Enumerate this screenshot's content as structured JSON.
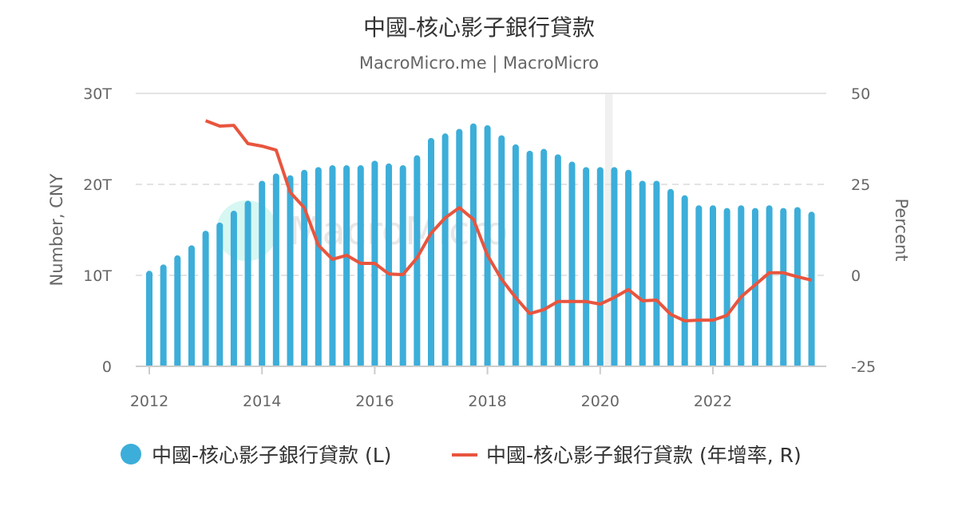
{
  "chart_data": {
    "type": "bar+line",
    "title": "中國-核心影子銀行貸款",
    "subtitle": "MacroMicro.me | MacroMicro",
    "watermark": "MacroMicro",
    "y_left": {
      "label": "Number, CNY",
      "ticks": [
        "0",
        "10T",
        "20T",
        "30T"
      ],
      "tick_values": [
        0,
        10,
        20,
        30
      ],
      "range": [
        0,
        30
      ],
      "unit": "T CNY"
    },
    "y_right": {
      "label": "Percent",
      "ticks": [
        "-25",
        "0",
        "25",
        "50"
      ],
      "tick_values": [
        -25,
        0,
        25,
        50
      ],
      "range": [
        -25,
        50
      ]
    },
    "x": {
      "ticks": [
        "2012",
        "2014",
        "2016",
        "2018",
        "2020",
        "2022"
      ],
      "tick_values": [
        2012,
        2014,
        2016,
        2018,
        2020,
        2022
      ],
      "range": [
        2011.8,
        2024.2
      ]
    },
    "grid": true,
    "legend_placement": "bottom",
    "shaded_period": [
      "2020-01",
      "2020-04"
    ],
    "categories": [
      "2012Q1",
      "2012Q2",
      "2012Q3",
      "2012Q4",
      "2013Q1",
      "2013Q2",
      "2013Q3",
      "2013Q4",
      "2014Q1",
      "2014Q2",
      "2014Q3",
      "2014Q4",
      "2015Q1",
      "2015Q2",
      "2015Q3",
      "2015Q4",
      "2016Q1",
      "2016Q2",
      "2016Q3",
      "2016Q4",
      "2017Q1",
      "2017Q2",
      "2017Q3",
      "2017Q4",
      "2018Q1",
      "2018Q2",
      "2018Q3",
      "2018Q4",
      "2019Q1",
      "2019Q2",
      "2019Q3",
      "2019Q4",
      "2020Q1",
      "2020Q2",
      "2020Q3",
      "2020Q4",
      "2021Q1",
      "2021Q2",
      "2021Q3",
      "2021Q4",
      "2022Q1",
      "2022Q2",
      "2022Q3",
      "2022Q4",
      "2023Q1",
      "2023Q2",
      "2023Q3",
      "2023Q4"
    ],
    "series": [
      {
        "name": "中國-核心影子銀行貸款 (L)",
        "type": "bar",
        "axis": "left",
        "color": "#3caed9",
        "values": [
          10.5,
          11.2,
          12.2,
          13.3,
          14.9,
          15.8,
          17.1,
          18.2,
          20.4,
          21.2,
          21.0,
          21.6,
          21.9,
          22.1,
          22.1,
          22.1,
          22.6,
          22.3,
          22.1,
          23.2,
          25.1,
          25.6,
          26.1,
          26.7,
          26.5,
          25.4,
          24.4,
          23.7,
          23.9,
          23.3,
          22.5,
          21.9,
          21.9,
          21.9,
          21.6,
          20.4,
          20.4,
          19.5,
          18.8,
          17.7,
          17.7,
          17.4,
          17.7,
          17.4,
          17.7,
          17.4,
          17.5,
          17.0
        ]
      },
      {
        "name": "中國-核心影子銀行貸款 (年增率, R)",
        "type": "line",
        "axis": "right",
        "color": "#e8553e",
        "values": [
          null,
          null,
          null,
          null,
          42.5,
          41.0,
          41.2,
          36.2,
          35.5,
          34.4,
          22.8,
          18.6,
          8.3,
          4.4,
          5.5,
          3.3,
          3.3,
          0.4,
          0.2,
          4.8,
          11.6,
          15.8,
          18.6,
          15.4,
          5.5,
          -1.1,
          -6.1,
          -10.5,
          -9.4,
          -7.2,
          -7.2,
          -7.2,
          -7.9,
          -6.1,
          -3.9,
          -7.0,
          -6.8,
          -10.7,
          -12.5,
          -12.3,
          -12.3,
          -11.0,
          -5.9,
          -2.6,
          0.7,
          0.7,
          -0.4,
          -1.3
        ]
      }
    ]
  }
}
